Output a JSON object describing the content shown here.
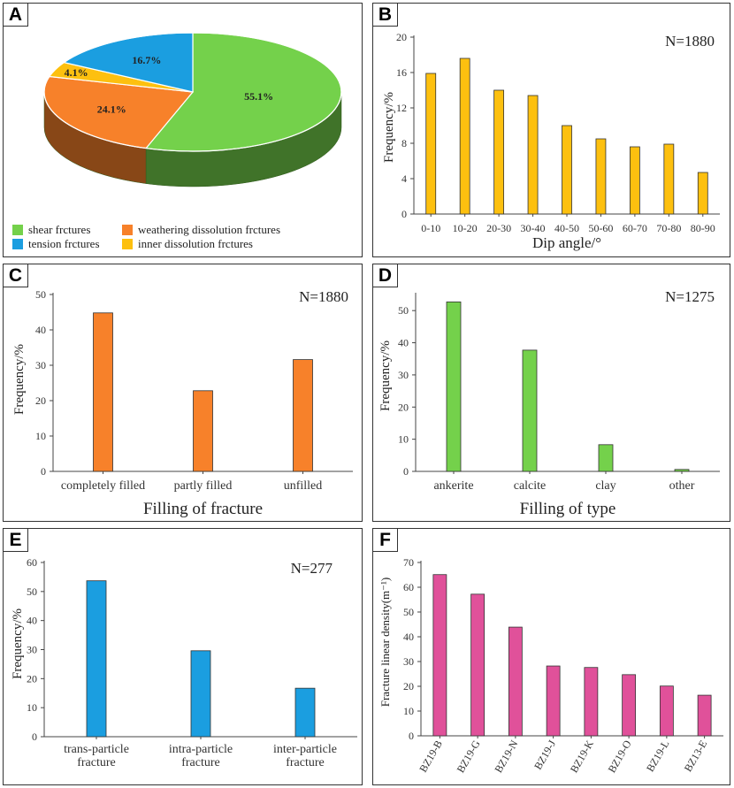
{
  "panels": [
    {
      "id": "A",
      "label": "A",
      "type": "pie",
      "title": "",
      "slices": [
        {
          "name": "shear frctures",
          "value": 55.1,
          "label": "55.1%",
          "color": "#74d14b"
        },
        {
          "name": "weathering dissolution frctures",
          "value": 24.1,
          "label": "24.1%",
          "color": "#f7812a"
        },
        {
          "name": "inner dissolution frctures",
          "value": 4.1,
          "label": "4.1%",
          "color": "#fdc00f"
        },
        {
          "name": "tension frctures",
          "value": 16.7,
          "label": "16.7%",
          "color": "#1b9ee0"
        }
      ],
      "legend_order": [
        "shear frctures",
        "weathering dissolution frctures",
        "tension frctures",
        "inner dissolution frctures"
      ]
    },
    {
      "id": "B",
      "label": "B",
      "type": "bar",
      "n_label": "N=1880",
      "categories": [
        "0-10",
        "10-20",
        "20-30",
        "30-40",
        "40-50",
        "50-60",
        "60-70",
        "70-80",
        "80-90"
      ],
      "values": [
        15.9,
        17.6,
        14.0,
        13.4,
        10.0,
        8.5,
        7.6,
        7.9,
        4.7
      ],
      "ylim": [
        0,
        20
      ],
      "yticks": [
        0,
        4,
        8,
        12,
        16,
        20
      ],
      "xlabel": "Dip angle/°",
      "ylabel": "Frequency/%",
      "color": "#fdc00f"
    },
    {
      "id": "C",
      "label": "C",
      "type": "bar",
      "n_label": "N=1880",
      "categories": [
        "completely filled",
        "partly filled",
        "unfilled"
      ],
      "values": [
        44.8,
        22.8,
        31.6
      ],
      "ylim": [
        0,
        50
      ],
      "yticks": [
        0,
        10,
        20,
        30,
        40,
        50
      ],
      "xlabel": "Filling of fracture",
      "ylabel": "Frequency/%",
      "color": "#f7812a"
    },
    {
      "id": "D",
      "label": "D",
      "type": "bar",
      "n_label": "N=1275",
      "categories": [
        "ankerite",
        "calcite",
        "clay",
        "other"
      ],
      "values": [
        52.7,
        37.7,
        8.3,
        0.6
      ],
      "ylim": [
        0,
        55
      ],
      "yticks": [
        0,
        10,
        20,
        30,
        40,
        50
      ],
      "xlabel": "Filling of type",
      "ylabel": "Frequency/%",
      "color": "#74d14b"
    },
    {
      "id": "E",
      "label": "E",
      "type": "bar",
      "n_label": "N=277",
      "categories": [
        "trans-particle fracture",
        "intra-particle fracture",
        "inter-particle fracture"
      ],
      "values": [
        53.7,
        29.6,
        16.7
      ],
      "ylim": [
        0,
        60
      ],
      "yticks": [
        0,
        10,
        20,
        30,
        40,
        50,
        60
      ],
      "xlabel": "",
      "ylabel": "Frequency/%",
      "color": "#1b9ee0"
    },
    {
      "id": "F",
      "label": "F",
      "type": "bar",
      "n_label": "",
      "categories": [
        "BZ19-B",
        "BZ19-G",
        "BZ19-N",
        "BZ19-J",
        "BZ19-K",
        "BZ19-O",
        "BZ19-L",
        "BZ13-E"
      ],
      "values": [
        65.1,
        57.2,
        43.9,
        28.2,
        27.6,
        24.7,
        20.1,
        16.4
      ],
      "ylim": [
        0,
        70
      ],
      "yticks": [
        0,
        10,
        20,
        30,
        40,
        50,
        60,
        70
      ],
      "xlabel": "",
      "ylabel": "Fracture  linear density(m⁻¹)",
      "color": "#e0519a"
    }
  ]
}
